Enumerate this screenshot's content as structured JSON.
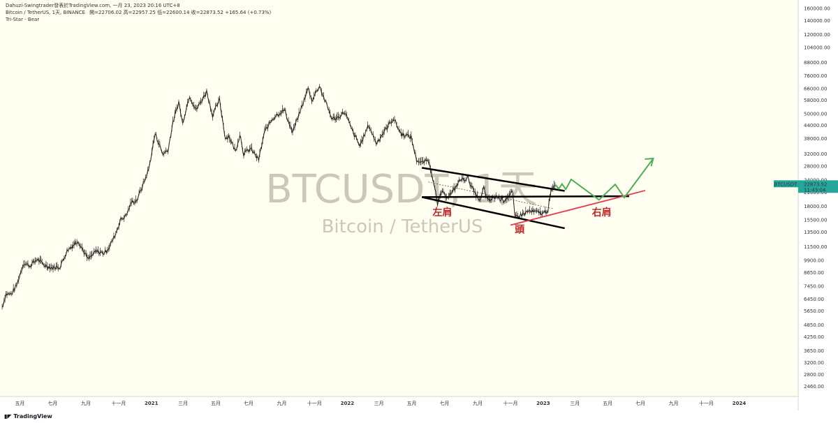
{
  "header": {
    "line1": "Dahuzi-Swingtrader發表於TradingView.com, 一月 23, 2023 20:16 UTC+8",
    "line2_symbol": "Bitcoin / TetherUS, 1天, BINANCE",
    "line2_ohlc": "開=22706.02 高=22957.25 低=22600.14 收=22873.52 +165.64 (+0.73%)",
    "line3": "Tri-Star - Bear"
  },
  "watermark": {
    "title": "BTCUSDT, 1天",
    "subtitle": "Bitcoin / TetherUS"
  },
  "price_tag": {
    "symbol": "BTCUSDT",
    "price": "22873.52",
    "countdown": "11:43:04",
    "color": "#26a69a"
  },
  "annotations": {
    "left_shoulder": "左肩",
    "head": "頭",
    "right_shoulder": "右肩"
  },
  "footer": {
    "logo": "TradingView"
  },
  "colors": {
    "background": "#fffef0",
    "candle": "#222222",
    "pattern_lines": "#000000",
    "neckline_red": "#e5394d",
    "projection_green": "#4caf50",
    "label_red": "#c0282a"
  },
  "chart_data": {
    "type": "line",
    "title": "",
    "xlabel": "",
    "ylabel": "",
    "y_scale": "log",
    "ylim": [
      2200,
      160000
    ],
    "xlim": [
      "2020-03-25",
      "2024-04-20"
    ],
    "grid": false,
    "y_ticks": [
      "160000.00",
      "140000.00",
      "120000.00",
      "104000.00",
      "88000.00",
      "76000.00",
      "66000.00",
      "58000.00",
      "50000.00",
      "44000.00",
      "38000.00",
      "32000.00",
      "28000.00",
      "24000.00",
      "21000.00",
      "18000.00",
      "15500.00",
      "13500.00",
      "11500.00",
      "9900.00",
      "8650.00",
      "7450.00",
      "6450.00",
      "5650.00",
      "4850.00",
      "4250.00",
      "3650.00",
      "3200.00",
      "2800.00",
      "2460.00"
    ],
    "x_ticks": [
      {
        "date": "2020-05-01",
        "label": "五月"
      },
      {
        "date": "2020-07-01",
        "label": "七月"
      },
      {
        "date": "2020-09-01",
        "label": "九月"
      },
      {
        "date": "2020-11-01",
        "label": "十一月"
      },
      {
        "date": "2021-01-01",
        "label": "2021"
      },
      {
        "date": "2021-03-01",
        "label": "三月"
      },
      {
        "date": "2021-05-01",
        "label": "五月"
      },
      {
        "date": "2021-07-01",
        "label": "七月"
      },
      {
        "date": "2021-09-01",
        "label": "九月"
      },
      {
        "date": "2021-11-01",
        "label": "十一月"
      },
      {
        "date": "2022-01-01",
        "label": "2022"
      },
      {
        "date": "2022-03-01",
        "label": "三月"
      },
      {
        "date": "2022-05-01",
        "label": "五月"
      },
      {
        "date": "2022-07-01",
        "label": "七月"
      },
      {
        "date": "2022-09-01",
        "label": "九月"
      },
      {
        "date": "2022-11-01",
        "label": "十一月"
      },
      {
        "date": "2023-01-01",
        "label": "2023"
      },
      {
        "date": "2023-03-01",
        "label": "三月"
      },
      {
        "date": "2023-05-01",
        "label": "五月"
      },
      {
        "date": "2023-07-01",
        "label": "七月"
      },
      {
        "date": "2023-09-01",
        "label": "九月"
      },
      {
        "date": "2023-11-01",
        "label": "十一月"
      },
      {
        "date": "2024-01-01",
        "label": "2024"
      }
    ],
    "series": [
      {
        "values": [
          [
            "2020-03-29",
            5900
          ],
          [
            "2020-04-05",
            6800
          ],
          [
            "2020-04-15",
            6800
          ],
          [
            "2020-04-25",
            7500
          ],
          [
            "2020-05-08",
            9600
          ],
          [
            "2020-05-20",
            9300
          ],
          [
            "2020-06-02",
            10000
          ],
          [
            "2020-06-15",
            9400
          ],
          [
            "2020-06-30",
            9100
          ],
          [
            "2020-07-15",
            9200
          ],
          [
            "2020-07-28",
            11000
          ],
          [
            "2020-08-10",
            11800
          ],
          [
            "2020-08-17",
            12300
          ],
          [
            "2020-09-05",
            10000
          ],
          [
            "2020-09-20",
            10900
          ],
          [
            "2020-10-05",
            10700
          ],
          [
            "2020-10-15",
            11500
          ],
          [
            "2020-10-25",
            13000
          ],
          [
            "2020-11-05",
            15500
          ],
          [
            "2020-11-15",
            16200
          ],
          [
            "2020-11-25",
            18800
          ],
          [
            "2020-12-05",
            19200
          ],
          [
            "2020-12-17",
            23000
          ],
          [
            "2020-12-27",
            27000
          ],
          [
            "2021-01-08",
            40000
          ],
          [
            "2021-01-15",
            36000
          ],
          [
            "2021-01-22",
            32000
          ],
          [
            "2021-02-01",
            33500
          ],
          [
            "2021-02-10",
            45000
          ],
          [
            "2021-02-21",
            57000
          ],
          [
            "2021-02-28",
            45000
          ],
          [
            "2021-03-13",
            61000
          ],
          [
            "2021-03-25",
            52000
          ],
          [
            "2021-04-05",
            58000
          ],
          [
            "2021-04-14",
            64000
          ],
          [
            "2021-04-25",
            49000
          ],
          [
            "2021-05-08",
            58000
          ],
          [
            "2021-05-19",
            38000
          ],
          [
            "2021-05-25",
            39000
          ],
          [
            "2021-06-07",
            33000
          ],
          [
            "2021-06-15",
            40000
          ],
          [
            "2021-06-22",
            32000
          ],
          [
            "2021-07-05",
            34000
          ],
          [
            "2021-07-20",
            30000
          ],
          [
            "2021-07-31",
            41000
          ],
          [
            "2021-08-14",
            47000
          ],
          [
            "2021-08-23",
            49500
          ],
          [
            "2021-09-06",
            52000
          ],
          [
            "2021-09-21",
            40500
          ],
          [
            "2021-10-05",
            51000
          ],
          [
            "2021-10-20",
            66000
          ],
          [
            "2021-10-27",
            58000
          ],
          [
            "2021-11-10",
            68000
          ],
          [
            "2021-11-20",
            58000
          ],
          [
            "2021-12-04",
            47000
          ],
          [
            "2021-12-15",
            48000
          ],
          [
            "2021-12-27",
            51000
          ],
          [
            "2022-01-10",
            41500
          ],
          [
            "2022-01-24",
            35000
          ],
          [
            "2022-02-10",
            44000
          ],
          [
            "2022-02-24",
            36000
          ],
          [
            "2022-03-05",
            39000
          ],
          [
            "2022-03-28",
            47500
          ],
          [
            "2022-04-11",
            40000
          ],
          [
            "2022-04-30",
            38500
          ],
          [
            "2022-05-10",
            30000
          ],
          [
            "2022-05-20",
            29000
          ],
          [
            "2022-06-01",
            30000
          ],
          [
            "2022-06-13",
            22500
          ],
          [
            "2022-06-18",
            18000
          ],
          [
            "2022-06-25",
            21000
          ],
          [
            "2022-07-05",
            20000
          ],
          [
            "2022-07-15",
            20800
          ],
          [
            "2022-07-30",
            24000
          ],
          [
            "2022-08-14",
            24500
          ],
          [
            "2022-08-25",
            21000
          ],
          [
            "2022-09-06",
            19000
          ],
          [
            "2022-09-12",
            22000
          ],
          [
            "2022-09-20",
            19000
          ],
          [
            "2022-10-05",
            20000
          ],
          [
            "2022-10-20",
            19200
          ],
          [
            "2022-11-05",
            21000
          ],
          [
            "2022-11-09",
            16000
          ],
          [
            "2022-11-20",
            16300
          ],
          [
            "2022-12-05",
            17000
          ],
          [
            "2022-12-20",
            16800
          ],
          [
            "2023-01-01",
            16600
          ],
          [
            "2023-01-10",
            17300
          ],
          [
            "2023-01-15",
            20800
          ],
          [
            "2023-01-23",
            22870
          ]
        ]
      }
    ],
    "annotations": {
      "upper_channel_line": [
        [
          "2022-05-20",
          27500
        ],
        [
          "2023-02-10",
          21300
        ]
      ],
      "lower_channel_line": [
        [
          "2022-05-20",
          19900
        ],
        [
          "2023-02-10",
          14100
        ]
      ],
      "neckline": [
        [
          "2022-05-20",
          19900
        ],
        [
          "2023-06-10",
          20100
        ]
      ],
      "red_rising_line": [
        [
          "2022-11-01",
          14600
        ],
        [
          "2023-07-10",
          21400
        ]
      ],
      "green_projection": [
        [
          "2023-01-23",
          22900
        ],
        [
          "2023-01-30",
          21800
        ],
        [
          "2023-02-05",
          23000
        ],
        [
          "2023-02-12",
          21700
        ],
        [
          "2023-02-22",
          24200
        ],
        [
          "2023-04-15",
          19300
        ],
        [
          "2023-05-15",
          22900
        ],
        [
          "2023-06-01",
          19800
        ],
        [
          "2023-07-25",
          30500
        ]
      ],
      "arrow_tip": [
        "2023-07-25",
        30500
      ]
    }
  }
}
